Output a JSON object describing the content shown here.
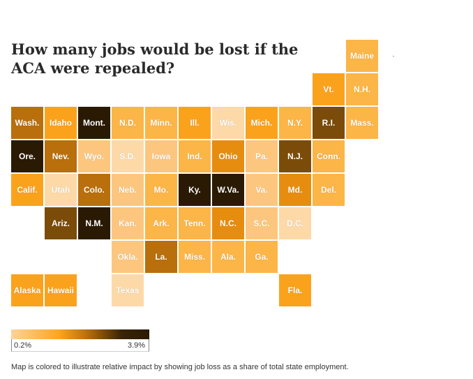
{
  "title": "How many jobs would be lost if the ACA were repealed?",
  "colors": {
    "c1": "#fdd9a8",
    "c2": "#fdc67e",
    "c3": "#fcb547",
    "c4": "#fba21d",
    "c5": "#e68d10",
    "c6": "#b86f0c",
    "c7": "#7b4c09",
    "c8": "#2a1a04"
  },
  "states": [
    {
      "abbr": "Maine",
      "col": 10,
      "row": 0,
      "shade": "c3"
    },
    {
      "abbr": "Vt.",
      "col": 9,
      "row": 1,
      "shade": "c4"
    },
    {
      "abbr": "N.H.",
      "col": 10,
      "row": 1,
      "shade": "c3"
    },
    {
      "abbr": "Wash.",
      "col": 0,
      "row": 2,
      "shade": "c6"
    },
    {
      "abbr": "Idaho",
      "col": 1,
      "row": 2,
      "shade": "c4"
    },
    {
      "abbr": "Mont.",
      "col": 2,
      "row": 2,
      "shade": "c8"
    },
    {
      "abbr": "N.D.",
      "col": 3,
      "row": 2,
      "shade": "c3"
    },
    {
      "abbr": "Minn.",
      "col": 4,
      "row": 2,
      "shade": "c3"
    },
    {
      "abbr": "Ill.",
      "col": 5,
      "row": 2,
      "shade": "c4"
    },
    {
      "abbr": "Wis.",
      "col": 6,
      "row": 2,
      "shade": "c1"
    },
    {
      "abbr": "Mich.",
      "col": 7,
      "row": 2,
      "shade": "c4"
    },
    {
      "abbr": "N.Y.",
      "col": 8,
      "row": 2,
      "shade": "c3"
    },
    {
      "abbr": "R.I.",
      "col": 9,
      "row": 2,
      "shade": "c7"
    },
    {
      "abbr": "Mass.",
      "col": 10,
      "row": 2,
      "shade": "c3"
    },
    {
      "abbr": "Ore.",
      "col": 0,
      "row": 3,
      "shade": "c8"
    },
    {
      "abbr": "Nev.",
      "col": 1,
      "row": 3,
      "shade": "c6"
    },
    {
      "abbr": "Wyo.",
      "col": 2,
      "row": 3,
      "shade": "c2"
    },
    {
      "abbr": "S.D.",
      "col": 3,
      "row": 3,
      "shade": "c1"
    },
    {
      "abbr": "Iowa",
      "col": 4,
      "row": 3,
      "shade": "c2"
    },
    {
      "abbr": "Ind.",
      "col": 5,
      "row": 3,
      "shade": "c3"
    },
    {
      "abbr": "Ohio",
      "col": 6,
      "row": 3,
      "shade": "c5"
    },
    {
      "abbr": "Pa.",
      "col": 7,
      "row": 3,
      "shade": "c2"
    },
    {
      "abbr": "N.J.",
      "col": 8,
      "row": 3,
      "shade": "c7"
    },
    {
      "abbr": "Conn.",
      "col": 9,
      "row": 3,
      "shade": "c3"
    },
    {
      "abbr": "Calif.",
      "col": 0,
      "row": 4,
      "shade": "c4"
    },
    {
      "abbr": "Utah",
      "col": 1,
      "row": 4,
      "shade": "c1"
    },
    {
      "abbr": "Colo.",
      "col": 2,
      "row": 4,
      "shade": "c6"
    },
    {
      "abbr": "Neb.",
      "col": 3,
      "row": 4,
      "shade": "c2"
    },
    {
      "abbr": "Mo.",
      "col": 4,
      "row": 4,
      "shade": "c3"
    },
    {
      "abbr": "Ky.",
      "col": 5,
      "row": 4,
      "shade": "c8"
    },
    {
      "abbr": "W.Va.",
      "col": 6,
      "row": 4,
      "shade": "c8"
    },
    {
      "abbr": "Va.",
      "col": 7,
      "row": 4,
      "shade": "c2"
    },
    {
      "abbr": "Md.",
      "col": 8,
      "row": 4,
      "shade": "c5"
    },
    {
      "abbr": "Del.",
      "col": 9,
      "row": 4,
      "shade": "c3"
    },
    {
      "abbr": "Ariz.",
      "col": 1,
      "row": 5,
      "shade": "c7"
    },
    {
      "abbr": "N.M.",
      "col": 2,
      "row": 5,
      "shade": "c8"
    },
    {
      "abbr": "Kan.",
      "col": 3,
      "row": 5,
      "shade": "c2"
    },
    {
      "abbr": "Ark.",
      "col": 4,
      "row": 5,
      "shade": "c3"
    },
    {
      "abbr": "Tenn.",
      "col": 5,
      "row": 5,
      "shade": "c3"
    },
    {
      "abbr": "N.C.",
      "col": 6,
      "row": 5,
      "shade": "c5"
    },
    {
      "abbr": "S.C.",
      "col": 7,
      "row": 5,
      "shade": "c2"
    },
    {
      "abbr": "D.C.",
      "col": 8,
      "row": 5,
      "shade": "c1"
    },
    {
      "abbr": "Okla.",
      "col": 3,
      "row": 6,
      "shade": "c2"
    },
    {
      "abbr": "La.",
      "col": 4,
      "row": 6,
      "shade": "c6"
    },
    {
      "abbr": "Miss.",
      "col": 5,
      "row": 6,
      "shade": "c3"
    },
    {
      "abbr": "Ala.",
      "col": 6,
      "row": 6,
      "shade": "c3"
    },
    {
      "abbr": "Ga.",
      "col": 7,
      "row": 6,
      "shade": "c3"
    },
    {
      "abbr": "Alaska",
      "col": 0,
      "row": 7,
      "shade": "c4"
    },
    {
      "abbr": "Hawaii",
      "col": 1,
      "row": 7,
      "shade": "c4"
    },
    {
      "abbr": "Texas",
      "col": 3,
      "row": 7,
      "shade": "c1"
    },
    {
      "abbr": "Fla.",
      "col": 8,
      "row": 7,
      "shade": "c4"
    }
  ],
  "legend": {
    "min": "0.2%",
    "max": "3.9%"
  },
  "note": "Map is colored to illustrate relative impact by showing job loss as a share of total state employment."
}
